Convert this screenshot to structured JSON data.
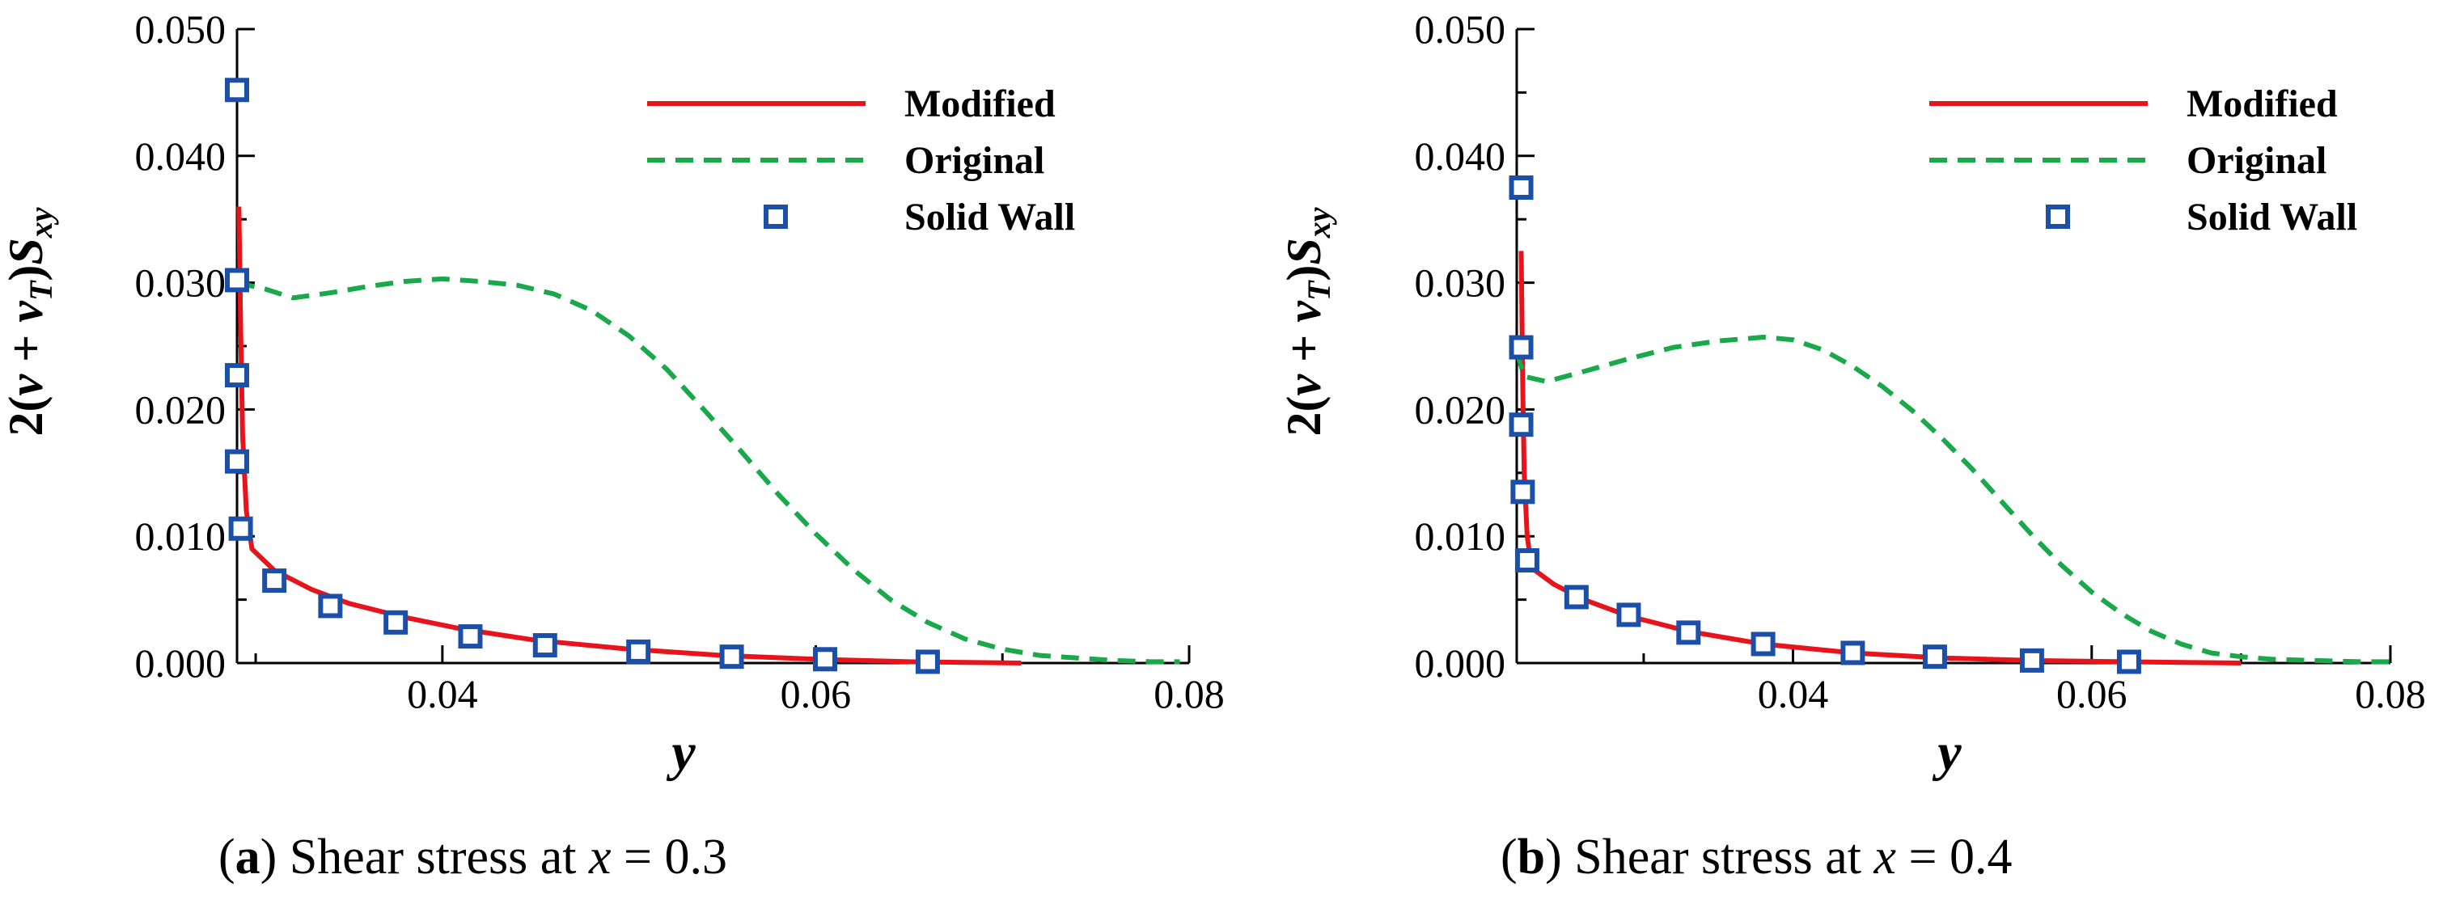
{
  "chart_data": [
    {
      "type": "line",
      "caption": {
        "open": "(",
        "letter": "a",
        "close": ")",
        "text": " Shear stress at ",
        "var": "x",
        "eq": " = 0.3"
      },
      "xlabel": "y",
      "ylabel": {
        "coef": "2(",
        "nu": "ν",
        "plus": " + ",
        "nuT": "ν",
        "nuT_sub": "T",
        "close": ")",
        "S": "S",
        "S_sub": "xy"
      },
      "xlim": [
        0.029,
        0.08
      ],
      "ylim": [
        0.0,
        0.05
      ],
      "xticks": [
        0.04,
        0.06,
        0.08
      ],
      "xtick_labels": [
        "0.04",
        "0.06",
        "0.08"
      ],
      "yticks": [
        0.0,
        0.01,
        0.02,
        0.03,
        0.04,
        0.05
      ],
      "ytick_labels": [
        "0.000",
        "0.010",
        "0.020",
        "0.030",
        "0.040",
        "0.050"
      ],
      "legend": [
        {
          "label": "Modified",
          "style": "solid",
          "color": "#e8141b"
        },
        {
          "label": "Original",
          "style": "dashed",
          "color": "#19a84a"
        },
        {
          "label": "Solid Wall",
          "style": "square-marker",
          "color": "#1c4fa8"
        }
      ],
      "series": [
        {
          "name": "Modified",
          "points": [
            [
              0.0291,
              0.036
            ],
            [
              0.0292,
              0.026
            ],
            [
              0.0293,
              0.018
            ],
            [
              0.0295,
              0.012
            ],
            [
              0.0298,
              0.009
            ],
            [
              0.031,
              0.0073
            ],
            [
              0.033,
              0.0058
            ],
            [
              0.035,
              0.0047
            ],
            [
              0.038,
              0.0036
            ],
            [
              0.041,
              0.0027
            ],
            [
              0.045,
              0.0018
            ],
            [
              0.05,
              0.0011
            ],
            [
              0.055,
              0.0006
            ],
            [
              0.06,
              0.0003
            ],
            [
              0.065,
              0.0001
            ],
            [
              0.071,
              0.0
            ]
          ]
        },
        {
          "name": "Original",
          "points": [
            [
              0.029,
              0.03
            ],
            [
              0.0305,
              0.0295
            ],
            [
              0.032,
              0.0288
            ],
            [
              0.034,
              0.0292
            ],
            [
              0.036,
              0.0297
            ],
            [
              0.038,
              0.0301
            ],
            [
              0.04,
              0.0303
            ],
            [
              0.042,
              0.0301
            ],
            [
              0.044,
              0.0298
            ],
            [
              0.046,
              0.0291
            ],
            [
              0.048,
              0.0278
            ],
            [
              0.05,
              0.0258
            ],
            [
              0.052,
              0.0232
            ],
            [
              0.054,
              0.02
            ],
            [
              0.056,
              0.0167
            ],
            [
              0.058,
              0.0133
            ],
            [
              0.06,
              0.0102
            ],
            [
              0.062,
              0.0074
            ],
            [
              0.064,
              0.005
            ],
            [
              0.066,
              0.0032
            ],
            [
              0.068,
              0.0019
            ],
            [
              0.07,
              0.0011
            ],
            [
              0.072,
              0.0006
            ],
            [
              0.074,
              0.0004
            ],
            [
              0.076,
              0.0002
            ],
            [
              0.078,
              0.0001
            ],
            [
              0.0795,
              0.0001
            ]
          ]
        },
        {
          "name": "Solid Wall",
          "points": [
            [
              0.029,
              0.0452
            ],
            [
              0.029,
              0.0302
            ],
            [
              0.029,
              0.0227
            ],
            [
              0.029,
              0.0159
            ],
            [
              0.0292,
              0.0106
            ],
            [
              0.031,
              0.0065
            ],
            [
              0.034,
              0.0045
            ],
            [
              0.0375,
              0.0032
            ],
            [
              0.0415,
              0.0021
            ],
            [
              0.0455,
              0.0014
            ],
            [
              0.0505,
              0.0009
            ],
            [
              0.0555,
              0.0005
            ],
            [
              0.0605,
              0.0003
            ],
            [
              0.066,
              0.0001
            ]
          ]
        }
      ]
    },
    {
      "type": "line",
      "caption": {
        "open": "(",
        "letter": "b",
        "close": ")",
        "text": " Shear stress at ",
        "var": "x",
        "eq": " = 0.4"
      },
      "xlabel": "y",
      "ylabel": {
        "coef": "2(",
        "nu": "ν",
        "plus": " + ",
        "nuT": "ν",
        "nuT_sub": "T",
        "close": ")",
        "S": "S",
        "S_sub": "xy"
      },
      "xlim": [
        0.0215,
        0.08
      ],
      "ylim": [
        0.0,
        0.05
      ],
      "xticks": [
        0.04,
        0.06,
        0.08
      ],
      "xtick_labels": [
        "0.04",
        "0.06",
        "0.08"
      ],
      "yticks": [
        0.0,
        0.01,
        0.02,
        0.03,
        0.04,
        0.05
      ],
      "ytick_labels": [
        "0.000",
        "0.010",
        "0.020",
        "0.030",
        "0.040",
        "0.050"
      ],
      "legend": [
        {
          "label": "Modified",
          "style": "solid",
          "color": "#e8141b"
        },
        {
          "label": "Original",
          "style": "dashed",
          "color": "#19a84a"
        },
        {
          "label": "Solid Wall",
          "style": "square-marker",
          "color": "#1c4fa8"
        }
      ],
      "series": [
        {
          "name": "Modified",
          "points": [
            [
              0.0218,
              0.0325
            ],
            [
              0.0219,
              0.022
            ],
            [
              0.022,
              0.015
            ],
            [
              0.0222,
              0.01
            ],
            [
              0.0225,
              0.0075
            ],
            [
              0.024,
              0.0062
            ],
            [
              0.026,
              0.005
            ],
            [
              0.029,
              0.0037
            ],
            [
              0.033,
              0.0025
            ],
            [
              0.038,
              0.0015
            ],
            [
              0.044,
              0.0008
            ],
            [
              0.05,
              0.0004
            ],
            [
              0.056,
              0.0002
            ],
            [
              0.062,
              0.0001
            ],
            [
              0.07,
              0.0
            ]
          ]
        },
        {
          "name": "Original",
          "points": [
            [
              0.0215,
              0.0245
            ],
            [
              0.022,
              0.0226
            ],
            [
              0.0235,
              0.0222
            ],
            [
              0.026,
              0.023
            ],
            [
              0.029,
              0.024
            ],
            [
              0.032,
              0.0249
            ],
            [
              0.035,
              0.0254
            ],
            [
              0.038,
              0.0257
            ],
            [
              0.04,
              0.0255
            ],
            [
              0.042,
              0.0247
            ],
            [
              0.044,
              0.0234
            ],
            [
              0.046,
              0.0218
            ],
            [
              0.048,
              0.0199
            ],
            [
              0.05,
              0.0177
            ],
            [
              0.052,
              0.0153
            ],
            [
              0.054,
              0.0127
            ],
            [
              0.056,
              0.0101
            ],
            [
              0.058,
              0.0077
            ],
            [
              0.06,
              0.0056
            ],
            [
              0.062,
              0.0039
            ],
            [
              0.064,
              0.0025
            ],
            [
              0.066,
              0.0015
            ],
            [
              0.068,
              0.0008
            ],
            [
              0.07,
              0.0005
            ],
            [
              0.072,
              0.0003
            ],
            [
              0.075,
              0.0002
            ],
            [
              0.078,
              0.0001
            ],
            [
              0.08,
              0.0001
            ]
          ]
        },
        {
          "name": "Solid Wall",
          "points": [
            [
              0.0218,
              0.0375
            ],
            [
              0.0218,
              0.0249
            ],
            [
              0.0218,
              0.0188
            ],
            [
              0.0219,
              0.0135
            ],
            [
              0.0222,
              0.0081
            ],
            [
              0.0255,
              0.0052
            ],
            [
              0.029,
              0.0038
            ],
            [
              0.033,
              0.0024
            ],
            [
              0.038,
              0.0015
            ],
            [
              0.044,
              0.0008
            ],
            [
              0.0495,
              0.0005
            ],
            [
              0.056,
              0.0002
            ],
            [
              0.0625,
              0.0001
            ]
          ]
        }
      ]
    }
  ]
}
